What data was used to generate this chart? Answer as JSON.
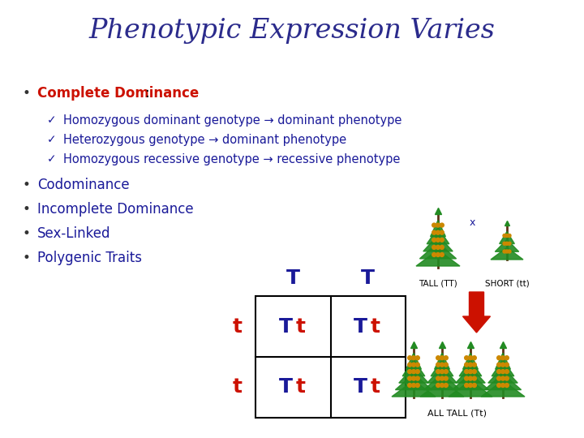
{
  "title": "Phenotypic Expression Varies",
  "title_color": "#2B2B8C",
  "title_fontsize": 24,
  "bg_color": "#FFFFFF",
  "bullet1_label": "Complete Dominance",
  "bullet1_colon": ":",
  "bullet1_color": "#CC1100",
  "bullet1_fontsize": 12,
  "sub_bullets": [
    "Homozygous dominant genotype → dominant phenotype",
    "Heterozygous genotype → dominant phenotype",
    "Homozygous recessive genotype → recessive phenotype"
  ],
  "sub_bullet_color": "#1A1A99",
  "sub_bullet_fontsize": 10.5,
  "other_bullets": [
    "Codominance",
    "Incomplete Dominance",
    "Sex-Linked",
    "Polygenic Traits"
  ],
  "other_bullet_color": "#1A1A99",
  "other_bullet_fontsize": 12,
  "punnett_T_color": "#1A1A99",
  "punnett_t_color": "#CC1100",
  "arrow_color": "#CC1100",
  "plant_green": "#228B22",
  "plant_brown": "#5C3317",
  "plant_flower": "#cc8800",
  "note_color": "#1A1A99",
  "label_color": "#000000"
}
